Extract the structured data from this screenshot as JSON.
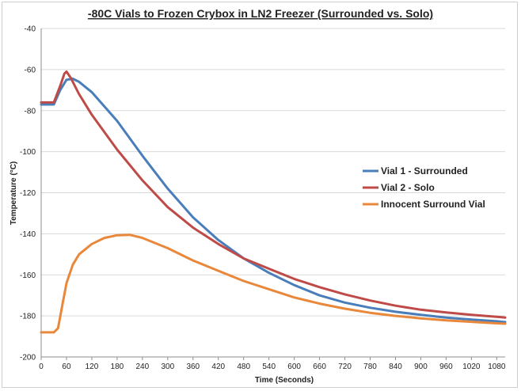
{
  "chart_data": {
    "type": "line",
    "title": "-80C Vials to Frozen Crybox in LN2 Freezer (Surrounded vs. Solo)",
    "xlabel": "Time (Seconds)",
    "ylabel": "Temperature (°C)",
    "xlim": [
      0,
      1100
    ],
    "ylim": [
      -200,
      -40
    ],
    "x_ticks": [
      0,
      60,
      120,
      180,
      240,
      300,
      360,
      420,
      480,
      540,
      600,
      660,
      720,
      780,
      840,
      900,
      960,
      1020,
      1080
    ],
    "y_ticks": [
      -40,
      -60,
      -80,
      -100,
      -120,
      -140,
      -160,
      -180,
      -200
    ],
    "grid": "horizontal",
    "legend_position": "right",
    "series": [
      {
        "name": "Vial 1 - Surrounded",
        "color": "#4a7ebb",
        "points": [
          [
            0,
            -77
          ],
          [
            20,
            -77
          ],
          [
            30,
            -77
          ],
          [
            45,
            -70
          ],
          [
            60,
            -65
          ],
          [
            75,
            -64.5
          ],
          [
            90,
            -66
          ],
          [
            120,
            -71
          ],
          [
            180,
            -85
          ],
          [
            240,
            -102
          ],
          [
            300,
            -118
          ],
          [
            360,
            -132
          ],
          [
            420,
            -143
          ],
          [
            480,
            -152
          ],
          [
            540,
            -159
          ],
          [
            600,
            -165
          ],
          [
            660,
            -170
          ],
          [
            720,
            -173.5
          ],
          [
            780,
            -176
          ],
          [
            840,
            -178
          ],
          [
            900,
            -179.5
          ],
          [
            960,
            -180.8
          ],
          [
            1020,
            -181.8
          ],
          [
            1080,
            -182.6
          ],
          [
            1100,
            -183
          ]
        ]
      },
      {
        "name": "Vial 2 - Solo",
        "color": "#be4b48",
        "points": [
          [
            0,
            -76
          ],
          [
            20,
            -76
          ],
          [
            30,
            -76
          ],
          [
            45,
            -68
          ],
          [
            55,
            -62
          ],
          [
            60,
            -61
          ],
          [
            70,
            -64
          ],
          [
            90,
            -72
          ],
          [
            120,
            -82
          ],
          [
            180,
            -99
          ],
          [
            240,
            -114
          ],
          [
            300,
            -127
          ],
          [
            360,
            -137
          ],
          [
            420,
            -145
          ],
          [
            480,
            -152
          ],
          [
            540,
            -157
          ],
          [
            600,
            -162
          ],
          [
            660,
            -166
          ],
          [
            720,
            -169.5
          ],
          [
            780,
            -172.5
          ],
          [
            840,
            -175
          ],
          [
            900,
            -177
          ],
          [
            960,
            -178.3
          ],
          [
            1020,
            -179.5
          ],
          [
            1080,
            -180.4
          ],
          [
            1100,
            -180.8
          ]
        ]
      },
      {
        "name": "Innocent Surround Vial",
        "color": "#e9883a",
        "points": [
          [
            0,
            -188
          ],
          [
            30,
            -188
          ],
          [
            40,
            -186
          ],
          [
            50,
            -175
          ],
          [
            60,
            -164
          ],
          [
            75,
            -155
          ],
          [
            90,
            -150
          ],
          [
            120,
            -145
          ],
          [
            150,
            -142
          ],
          [
            180,
            -140.7
          ],
          [
            210,
            -140.5
          ],
          [
            240,
            -142
          ],
          [
            300,
            -147
          ],
          [
            360,
            -153
          ],
          [
            420,
            -158
          ],
          [
            480,
            -163
          ],
          [
            540,
            -167
          ],
          [
            600,
            -171
          ],
          [
            660,
            -174
          ],
          [
            720,
            -176.5
          ],
          [
            780,
            -178.5
          ],
          [
            840,
            -180
          ],
          [
            900,
            -181.2
          ],
          [
            960,
            -182.2
          ],
          [
            1020,
            -182.9
          ],
          [
            1080,
            -183.6
          ],
          [
            1100,
            -183.8
          ]
        ]
      }
    ]
  }
}
